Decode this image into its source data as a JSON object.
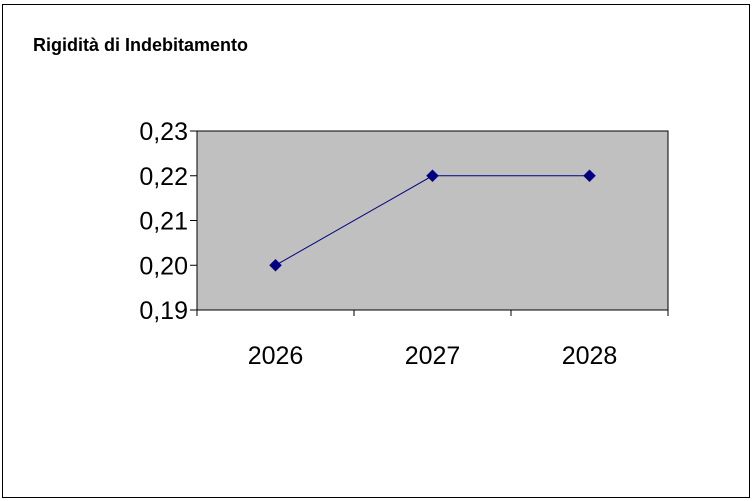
{
  "chart_data": {
    "type": "line",
    "title": "Rigidità di Indebitamento",
    "xlabel": "",
    "ylabel": "",
    "categories": [
      "2026",
      "2027",
      "2028"
    ],
    "series": [
      {
        "values": [
          0.2,
          0.22,
          0.22
        ]
      }
    ],
    "ylim": [
      0.19,
      0.23
    ],
    "yticks": [
      0.19,
      0.2,
      0.21,
      0.22,
      0.23
    ],
    "ytick_labels": [
      "0,19",
      "0,20",
      "0,21",
      "0,22",
      "0,23"
    ],
    "grid": false,
    "legend": "none",
    "plot_background": "#C0C0C0",
    "line_color": "#000080",
    "marker": "diamond"
  }
}
